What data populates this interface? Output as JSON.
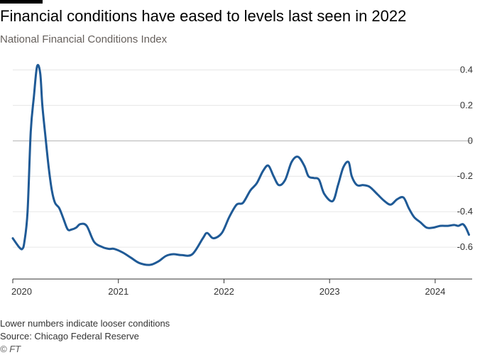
{
  "header": {
    "title": "Financial conditions have eased to levels last seen in 2022",
    "subtitle": "National Financial Conditions Index"
  },
  "footer": {
    "note": "Lower numbers indicate looser conditions",
    "source": "Source: Chicago Federal Reserve",
    "copyright": "© FT"
  },
  "colors": {
    "line": "#1f5a96",
    "grid": "#e6e6e6",
    "zero_line": "#b3b3b3",
    "axis": "#333333"
  },
  "chart_data": {
    "type": "line",
    "title": "Financial conditions have eased to levels last seen in 2022",
    "subtitle": "National Financial Conditions Index",
    "xlabel": "",
    "ylabel": "",
    "xlim": [
      2020.0,
      2024.33
    ],
    "ylim": [
      -0.78,
      0.45
    ],
    "yticks": [
      0.4,
      0.2,
      0,
      -0.2,
      -0.4,
      -0.6
    ],
    "ytick_labels": [
      "0.4",
      "0.2",
      "0",
      "-0.2",
      "-0.4",
      "-0.6"
    ],
    "xticks": [
      2020,
      2021,
      2022,
      2023,
      2024
    ],
    "xtick_labels": [
      "2020",
      "2021",
      "2022",
      "2023",
      "2024"
    ],
    "y_axis_side": "right",
    "grid": true,
    "series": [
      {
        "x": [
          2020.0,
          2020.06,
          2020.09,
          2020.11,
          2020.14,
          2020.17,
          2020.2,
          2020.23,
          2020.26,
          2020.28,
          2020.31,
          2020.34,
          2020.37,
          2020.4,
          2020.44,
          2020.48,
          2020.52,
          2020.56,
          2020.6,
          2020.64,
          2020.7,
          2020.77,
          2020.85,
          2020.91,
          2020.96,
          2021.04,
          2021.12,
          2021.2,
          2021.3,
          2021.38,
          2021.45,
          2021.52,
          2021.6,
          2021.7,
          2021.8,
          2021.84,
          2021.9,
          2021.98,
          2022.05,
          2022.12,
          2022.18,
          2022.25,
          2022.31,
          2022.37,
          2022.42,
          2022.47,
          2022.52,
          2022.58,
          2022.64,
          2022.7,
          2022.76,
          2022.8,
          2022.85,
          2022.9,
          2022.95,
          2023.03,
          2023.08,
          2023.13,
          2023.18,
          2023.21,
          2023.26,
          2023.32,
          2023.38,
          2023.45,
          2023.52,
          2023.58,
          2023.64,
          2023.7,
          2023.75,
          2023.8,
          2023.86,
          2023.92,
          2023.98,
          2024.05,
          2024.12,
          2024.18,
          2024.22,
          2024.26,
          2024.29,
          2024.32
        ],
        "y": [
          -0.55,
          -0.6,
          -0.61,
          -0.57,
          -0.4,
          0.05,
          0.25,
          0.42,
          0.38,
          0.2,
          0.02,
          -0.15,
          -0.28,
          -0.35,
          -0.38,
          -0.44,
          -0.5,
          -0.5,
          -0.49,
          -0.47,
          -0.48,
          -0.57,
          -0.6,
          -0.61,
          -0.61,
          -0.63,
          -0.66,
          -0.69,
          -0.7,
          -0.68,
          -0.65,
          -0.64,
          -0.645,
          -0.64,
          -0.55,
          -0.52,
          -0.55,
          -0.52,
          -0.43,
          -0.36,
          -0.35,
          -0.28,
          -0.24,
          -0.17,
          -0.14,
          -0.2,
          -0.25,
          -0.22,
          -0.12,
          -0.09,
          -0.14,
          -0.2,
          -0.21,
          -0.22,
          -0.3,
          -0.34,
          -0.25,
          -0.15,
          -0.12,
          -0.2,
          -0.25,
          -0.25,
          -0.26,
          -0.3,
          -0.34,
          -0.36,
          -0.33,
          -0.32,
          -0.38,
          -0.43,
          -0.46,
          -0.49,
          -0.49,
          -0.48,
          -0.48,
          -0.475,
          -0.48,
          -0.47,
          -0.49,
          -0.53
        ]
      }
    ]
  }
}
